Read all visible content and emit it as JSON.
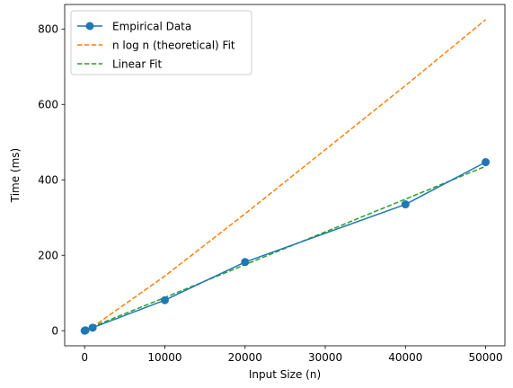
{
  "chart_data": {
    "type": "line",
    "title": "",
    "xlabel": "Input Size (n)",
    "ylabel": "Time (ms)",
    "xlim": [
      -2490,
      52400
    ],
    "ylim": [
      -40,
      865
    ],
    "xticks": [
      0,
      10000,
      20000,
      30000,
      40000,
      50000
    ],
    "yticks": [
      0,
      200,
      400,
      600,
      800
    ],
    "grid": false,
    "legend_position": "top-left",
    "series": [
      {
        "name": "Empirical Data",
        "style": "solid",
        "marker": "circle",
        "color": "#1f77b4",
        "x": [
          0,
          100,
          1000,
          10000,
          20000,
          40000,
          50000
        ],
        "y": [
          0,
          1,
          8,
          81,
          182,
          335,
          447
        ]
      },
      {
        "name": "n log n (theoretical) Fit",
        "style": "dashed",
        "marker": "none",
        "color": "#ff7f0e",
        "x": [
          100,
          1000,
          10000,
          20000,
          30000,
          40000,
          50000
        ],
        "y": [
          1,
          10,
          145,
          310,
          480,
          650,
          825
        ]
      },
      {
        "name": "Linear Fit",
        "style": "dashed",
        "marker": "none",
        "color": "#2ca02c",
        "x": [
          0,
          10000,
          20000,
          30000,
          40000,
          50000
        ],
        "y": [
          2,
          88,
          175,
          262,
          349,
          436
        ]
      }
    ]
  }
}
